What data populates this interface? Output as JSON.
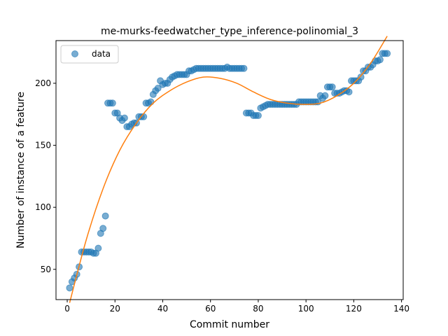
{
  "chart_data": {
    "type": "scatter",
    "title": "me-murks-feedwatcher_type_inference-polinomial_3",
    "xlabel": "Commit number",
    "ylabel": "Number of instance of a feature",
    "xlim": [
      -4.7,
      140.7
    ],
    "ylim": [
      25.6,
      234.4
    ],
    "xticks": [
      0,
      20,
      40,
      60,
      80,
      100,
      120,
      140
    ],
    "yticks": [
      50,
      100,
      150,
      200
    ],
    "legend": {
      "placement": "top-left",
      "entries": [
        "data"
      ]
    },
    "colors": {
      "data": "#1f77b4",
      "fit": "#ff7f0e"
    },
    "series": [
      {
        "name": "data",
        "kind": "scatter",
        "x": [
          1,
          2,
          3,
          4,
          5,
          6,
          7,
          8,
          9,
          10,
          11,
          12,
          13,
          14,
          15,
          16,
          17,
          18,
          19,
          20,
          21,
          22,
          23,
          24,
          25,
          26,
          27,
          28,
          29,
          30,
          31,
          32,
          33,
          34,
          35,
          36,
          37,
          38,
          39,
          40,
          41,
          42,
          43,
          44,
          45,
          46,
          47,
          48,
          49,
          50,
          51,
          52,
          53,
          54,
          55,
          56,
          57,
          58,
          59,
          60,
          61,
          62,
          63,
          64,
          65,
          66,
          67,
          68,
          69,
          70,
          71,
          72,
          73,
          74,
          75,
          76,
          77,
          78,
          79,
          80,
          81,
          82,
          83,
          84,
          85,
          86,
          87,
          88,
          89,
          90,
          91,
          92,
          93,
          94,
          95,
          96,
          97,
          98,
          99,
          100,
          101,
          102,
          103,
          104,
          105,
          106,
          107,
          108,
          109,
          110,
          111,
          112,
          113,
          114,
          115,
          116,
          117,
          118,
          119,
          120,
          121,
          122,
          123,
          124,
          125,
          126,
          127,
          128,
          129,
          130,
          131,
          132,
          133,
          134
        ],
        "y": [
          35,
          40,
          43,
          46,
          52,
          64,
          64,
          64,
          64,
          64,
          63,
          63,
          67,
          79,
          83,
          93,
          184,
          184,
          184,
          176,
          176,
          172,
          170,
          172,
          165,
          165,
          167,
          168,
          168,
          173,
          173,
          173,
          184,
          184,
          185,
          191,
          194,
          196,
          202,
          199,
          200,
          200,
          203,
          205,
          206,
          207,
          207,
          207,
          207,
          207,
          210,
          210,
          211,
          212,
          212,
          212,
          212,
          212,
          212,
          212,
          212,
          212,
          212,
          212,
          212,
          212,
          213,
          212,
          212,
          212,
          212,
          212,
          212,
          212,
          176,
          176,
          176,
          174,
          174,
          174,
          180,
          181,
          182,
          183,
          183,
          183,
          183,
          183,
          183,
          183,
          183,
          183,
          183,
          183,
          183,
          183,
          185,
          185,
          185,
          185,
          185,
          185,
          185,
          185,
          185,
          190,
          188,
          190,
          197,
          197,
          197,
          192,
          192,
          192,
          193,
          194,
          194,
          193,
          202,
          202,
          202,
          202,
          205,
          210,
          210,
          213,
          213,
          215,
          218,
          218,
          219,
          224,
          224,
          224
        ]
      },
      {
        "name": "",
        "kind": "line",
        "degree": 3,
        "x": [
          1,
          8,
          15,
          22,
          29,
          36,
          43,
          50,
          57,
          64,
          71,
          78,
          85,
          92,
          99,
          106,
          113,
          120,
          127,
          134
        ],
        "y": [
          23,
          74,
          115,
          146,
          168,
          184,
          194,
          201,
          205,
          204,
          200,
          193,
          187,
          184,
          183,
          184,
          190,
          200,
          216,
          238
        ]
      }
    ]
  }
}
